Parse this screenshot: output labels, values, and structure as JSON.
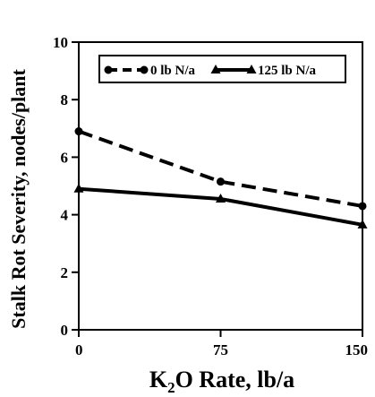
{
  "chart_data": {
    "type": "line",
    "x": [
      0,
      75,
      150
    ],
    "series": [
      {
        "name": "0 lb N/a",
        "values": [
          6.9,
          5.15,
          4.3
        ],
        "style": "dashed",
        "marker": "circle",
        "color": "#000000"
      },
      {
        "name": "125 lb N/a",
        "values": [
          4.9,
          4.55,
          3.65
        ],
        "style": "solid",
        "marker": "triangle",
        "color": "#000000"
      }
    ],
    "title": "",
    "xlabel": {
      "prefix": "K",
      "sub": "2",
      "suffix": "O Rate, lb/a"
    },
    "ylabel": "Stalk Rot Severity, nodes/plant",
    "xlim": [
      0,
      150
    ],
    "ylim": [
      0,
      10
    ],
    "xticks": [
      "0",
      "75",
      "150"
    ],
    "yticks": [
      "0",
      "2",
      "4",
      "6",
      "8",
      "10"
    ],
    "grid": false,
    "legend_position": "top-inside"
  }
}
